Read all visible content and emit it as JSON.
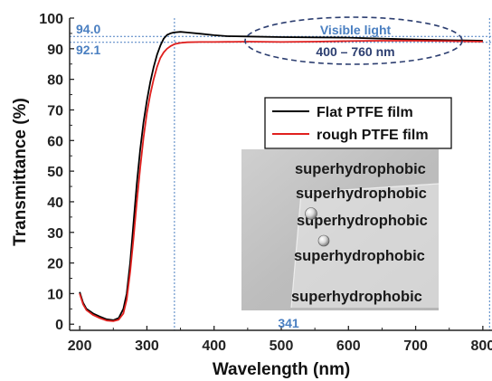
{
  "chart_data": {
    "type": "line",
    "xlabel": "Wavelength (nm)",
    "ylabel": "Transmittance (%)",
    "xlim": [
      185,
      815
    ],
    "ylim": [
      -2,
      100
    ],
    "x_ticks": [
      200,
      300,
      400,
      500,
      600,
      700,
      800
    ],
    "y_ticks": [
      0,
      10,
      20,
      30,
      40,
      50,
      60,
      70,
      80,
      90,
      100
    ],
    "grid": false,
    "legend_position": "right",
    "series": [
      {
        "name": "Flat PTFE film",
        "color": "#000000",
        "points": [
          [
            200,
            10.5
          ],
          [
            205,
            7
          ],
          [
            210,
            5
          ],
          [
            220,
            3.5
          ],
          [
            230,
            2.5
          ],
          [
            240,
            1.6
          ],
          [
            250,
            1.3
          ],
          [
            258,
            2
          ],
          [
            265,
            5
          ],
          [
            270,
            10
          ],
          [
            275,
            20
          ],
          [
            280,
            33
          ],
          [
            285,
            46
          ],
          [
            290,
            57
          ],
          [
            295,
            66
          ],
          [
            300,
            73
          ],
          [
            305,
            79
          ],
          [
            310,
            84
          ],
          [
            315,
            88
          ],
          [
            320,
            91
          ],
          [
            325,
            93.3
          ],
          [
            330,
            94.5
          ],
          [
            335,
            95
          ],
          [
            340,
            95.3
          ],
          [
            350,
            95.5
          ],
          [
            360,
            95.3
          ],
          [
            380,
            94.9
          ],
          [
            400,
            94.4
          ],
          [
            420,
            94.1
          ],
          [
            450,
            94
          ],
          [
            500,
            93.8
          ],
          [
            550,
            93.7
          ],
          [
            600,
            93.6
          ],
          [
            650,
            93.3
          ],
          [
            700,
            93
          ],
          [
            750,
            92.8
          ],
          [
            800,
            92.6
          ]
        ]
      },
      {
        "name": "rough PTFE film",
        "color": "#e0201e",
        "points": [
          [
            200,
            10
          ],
          [
            205,
            6.5
          ],
          [
            210,
            4.6
          ],
          [
            220,
            3
          ],
          [
            230,
            2
          ],
          [
            240,
            1.2
          ],
          [
            250,
            1
          ],
          [
            258,
            1.5
          ],
          [
            265,
            3.5
          ],
          [
            270,
            8
          ],
          [
            275,
            17
          ],
          [
            280,
            28
          ],
          [
            285,
            40
          ],
          [
            290,
            51
          ],
          [
            295,
            61
          ],
          [
            300,
            69
          ],
          [
            305,
            75
          ],
          [
            310,
            80
          ],
          [
            315,
            84
          ],
          [
            320,
            87
          ],
          [
            325,
            88.8
          ],
          [
            330,
            90
          ],
          [
            335,
            90.8
          ],
          [
            341,
            91.5
          ],
          [
            350,
            91.9
          ],
          [
            360,
            92.1
          ],
          [
            380,
            92.2
          ],
          [
            400,
            92.2
          ],
          [
            450,
            92.3
          ],
          [
            500,
            92.2
          ],
          [
            550,
            92.3
          ],
          [
            600,
            92.5
          ],
          [
            650,
            92.6
          ],
          [
            700,
            92.6
          ],
          [
            750,
            92.5
          ],
          [
            800,
            92.3
          ]
        ]
      }
    ],
    "annotations": {
      "peak_flat_value": "94.0",
      "peak_rough_value": "92.1",
      "cutoff_wavelength": "341",
      "region_title": "Visible light",
      "region_range": "400 – 760 nm"
    },
    "reference_lines": {
      "horizontal_y": [
        94.0,
        92.1
      ],
      "vertical_x": [
        341,
        810
      ]
    },
    "colors": {
      "annotation_blue": "#4a7fc1",
      "ellipse_navy": "#2c3e70",
      "axis": "#222222"
    },
    "inset_photo": {
      "words": [
        "superhydrophobic",
        "superhydrophobic",
        "superhydrophobic",
        "superhydrophobic",
        "superhydrophobic"
      ]
    }
  }
}
